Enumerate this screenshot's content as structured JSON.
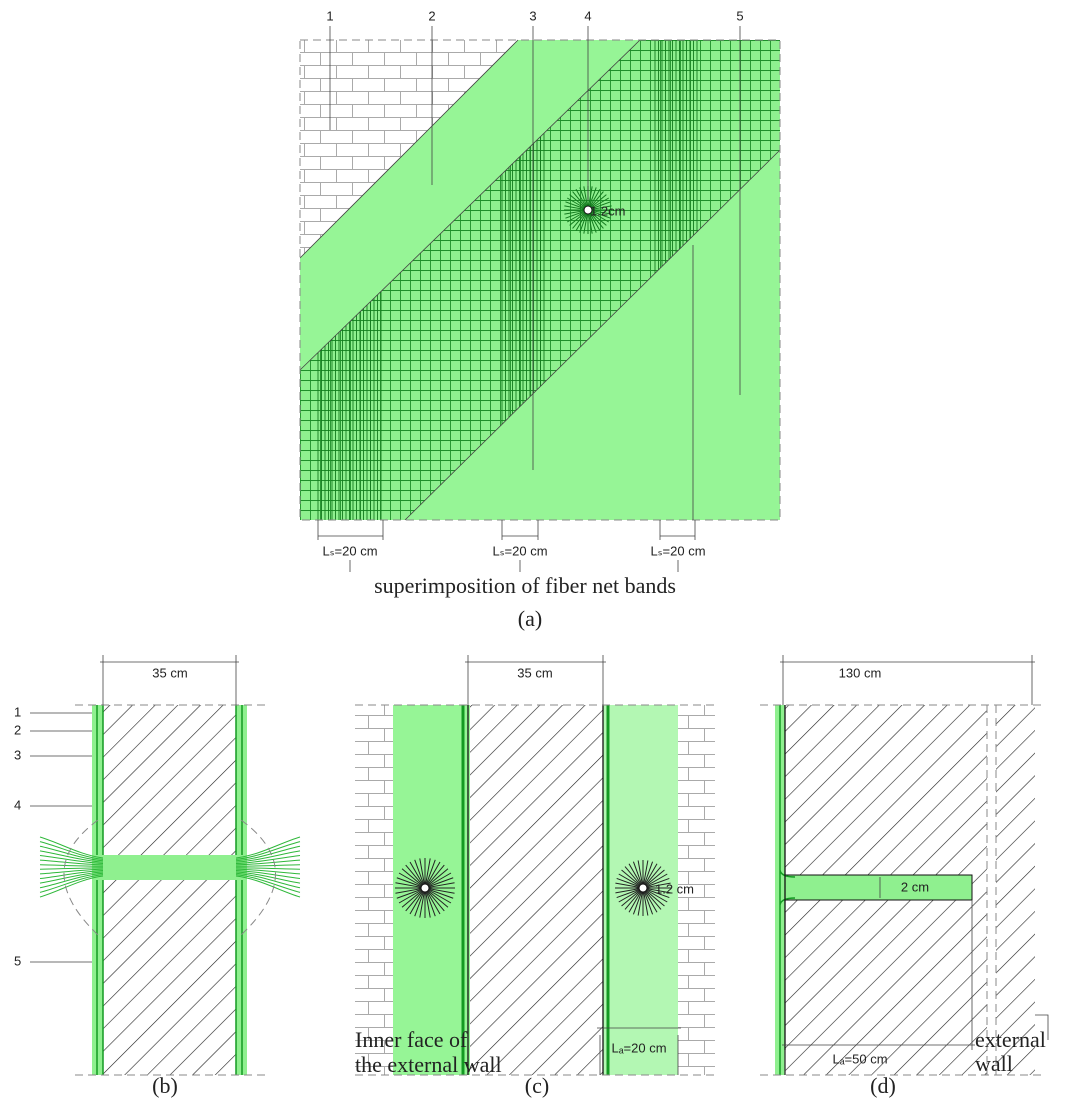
{
  "panel_a": {
    "callouts": [
      "1",
      "2",
      "3",
      "4",
      "5"
    ],
    "diameter": "1.2cm",
    "lap_lengths": [
      "Lₛ=20 cm",
      "Lₛ=20 cm",
      "Lₛ=20 cm"
    ],
    "caption": "superimposition of fiber net bands",
    "label": "(a)"
  },
  "panel_b": {
    "width": "35 cm",
    "callouts": [
      "1",
      "2",
      "3",
      "4",
      "5"
    ],
    "label": "(b)"
  },
  "panel_c": {
    "width": "35 cm",
    "diameter": "1.2 cm",
    "note": [
      "Inner face of",
      "the external wall"
    ],
    "anchorage": "Lₐ=20 cm",
    "label": "(c)"
  },
  "panel_d": {
    "width": "130 cm",
    "diameter": "2 cm",
    "note": [
      "external",
      "wall"
    ],
    "anchorage": "Lₐ=50 cm",
    "label": "(d)"
  }
}
